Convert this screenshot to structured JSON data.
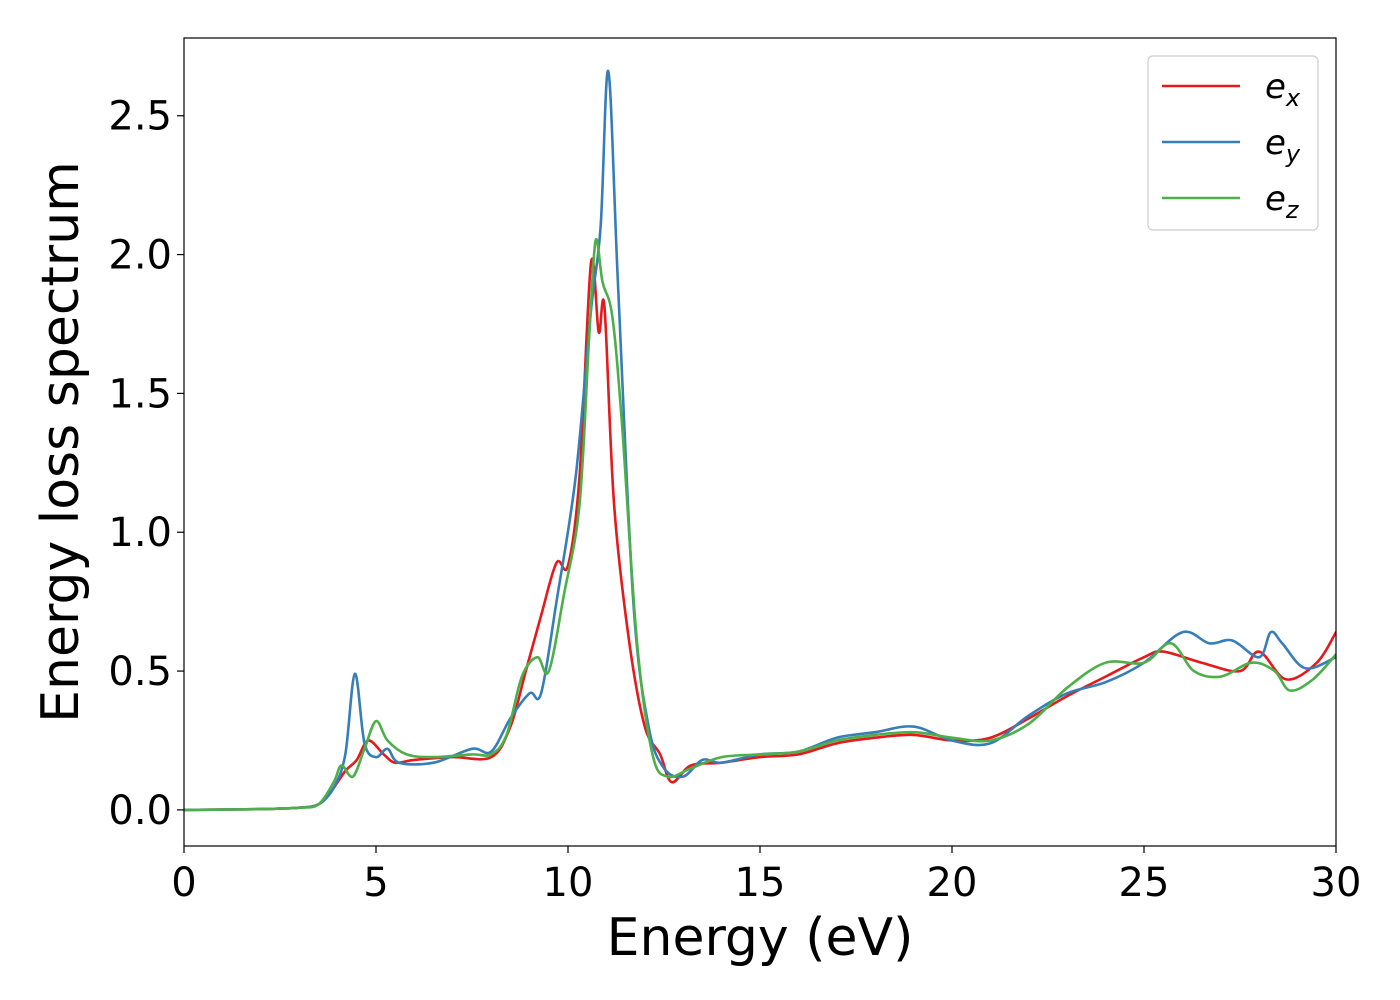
{
  "chart_data": {
    "type": "line",
    "title": "",
    "xlabel": "Energy (eV)",
    "ylabel": "Energy loss spectrum",
    "xlim": [
      0,
      30
    ],
    "ylim": [
      -0.13,
      2.78
    ],
    "xticks": [
      0,
      5,
      10,
      15,
      20,
      25,
      30
    ],
    "yticks": [
      0.0,
      0.5,
      1.0,
      1.5,
      2.0,
      2.5
    ],
    "xtick_labels": [
      "0",
      "5",
      "10",
      "15",
      "20",
      "25",
      "30"
    ],
    "ytick_labels": [
      "0.0",
      "0.5",
      "1.0",
      "1.5",
      "2.0",
      "2.5"
    ],
    "grid": false,
    "legend_position": "top-right",
    "series": [
      {
        "name": "e_x",
        "label_base": "e",
        "label_sub": "x",
        "color": "#e41a1c",
        "points": [
          [
            0,
            0
          ],
          [
            2,
            0.003
          ],
          [
            3,
            0.008
          ],
          [
            3.5,
            0.02
          ],
          [
            3.8,
            0.06
          ],
          [
            4.2,
            0.14
          ],
          [
            4.5,
            0.18
          ],
          [
            4.8,
            0.25
          ],
          [
            5.2,
            0.2
          ],
          [
            5.5,
            0.17
          ],
          [
            6,
            0.18
          ],
          [
            7,
            0.19
          ],
          [
            8,
            0.19
          ],
          [
            8.5,
            0.3
          ],
          [
            8.9,
            0.5
          ],
          [
            9.3,
            0.7
          ],
          [
            9.7,
            0.89
          ],
          [
            10.0,
            0.88
          ],
          [
            10.3,
            1.2
          ],
          [
            10.6,
            1.97
          ],
          [
            10.8,
            1.72
          ],
          [
            10.95,
            1.81
          ],
          [
            11.2,
            1.1
          ],
          [
            11.6,
            0.6
          ],
          [
            12,
            0.3
          ],
          [
            12.4,
            0.2
          ],
          [
            12.7,
            0.1
          ],
          [
            13.2,
            0.16
          ],
          [
            14,
            0.17
          ],
          [
            15,
            0.19
          ],
          [
            16,
            0.2
          ],
          [
            17,
            0.24
          ],
          [
            18,
            0.26
          ],
          [
            19,
            0.27
          ],
          [
            20,
            0.25
          ],
          [
            21,
            0.26
          ],
          [
            22,
            0.33
          ],
          [
            23,
            0.41
          ],
          [
            24,
            0.48
          ],
          [
            25,
            0.55
          ],
          [
            25.5,
            0.57
          ],
          [
            26.5,
            0.53
          ],
          [
            27.5,
            0.5
          ],
          [
            28,
            0.57
          ],
          [
            28.7,
            0.47
          ],
          [
            29.5,
            0.53
          ],
          [
            30,
            0.64
          ]
        ]
      },
      {
        "name": "e_y",
        "label_base": "e",
        "label_sub": "y",
        "color": "#377eb8",
        "points": [
          [
            0,
            0
          ],
          [
            2,
            0.003
          ],
          [
            3,
            0.008
          ],
          [
            3.5,
            0.02
          ],
          [
            3.9,
            0.08
          ],
          [
            4.2,
            0.2
          ],
          [
            4.45,
            0.49
          ],
          [
            4.7,
            0.24
          ],
          [
            5.0,
            0.19
          ],
          [
            5.3,
            0.22
          ],
          [
            5.6,
            0.17
          ],
          [
            6.5,
            0.17
          ],
          [
            7.5,
            0.22
          ],
          [
            8.0,
            0.21
          ],
          [
            8.5,
            0.33
          ],
          [
            9.0,
            0.42
          ],
          [
            9.3,
            0.42
          ],
          [
            9.7,
            0.75
          ],
          [
            10.2,
            1.2
          ],
          [
            10.6,
            1.8
          ],
          [
            10.85,
            2.1
          ],
          [
            11.05,
            2.66
          ],
          [
            11.3,
            1.9
          ],
          [
            11.7,
            0.75
          ],
          [
            12.1,
            0.3
          ],
          [
            12.5,
            0.15
          ],
          [
            13,
            0.12
          ],
          [
            13.5,
            0.18
          ],
          [
            14,
            0.17
          ],
          [
            15,
            0.2
          ],
          [
            16,
            0.21
          ],
          [
            17,
            0.26
          ],
          [
            18,
            0.28
          ],
          [
            19,
            0.3
          ],
          [
            20,
            0.25
          ],
          [
            21,
            0.24
          ],
          [
            22,
            0.34
          ],
          [
            23,
            0.42
          ],
          [
            24,
            0.46
          ],
          [
            25,
            0.53
          ],
          [
            26,
            0.64
          ],
          [
            26.7,
            0.6
          ],
          [
            27.3,
            0.61
          ],
          [
            28.0,
            0.55
          ],
          [
            28.3,
            0.64
          ],
          [
            28.6,
            0.6
          ],
          [
            29.2,
            0.51
          ],
          [
            30,
            0.55
          ]
        ]
      },
      {
        "name": "e_z",
        "label_base": "e",
        "label_sub": "z",
        "color": "#4daf4a",
        "points": [
          [
            0,
            0
          ],
          [
            2,
            0.003
          ],
          [
            3,
            0.008
          ],
          [
            3.5,
            0.02
          ],
          [
            3.9,
            0.1
          ],
          [
            4.1,
            0.16
          ],
          [
            4.4,
            0.12
          ],
          [
            4.7,
            0.22
          ],
          [
            5.0,
            0.32
          ],
          [
            5.3,
            0.25
          ],
          [
            5.8,
            0.2
          ],
          [
            6.5,
            0.19
          ],
          [
            7.5,
            0.2
          ],
          [
            8.0,
            0.2
          ],
          [
            8.4,
            0.27
          ],
          [
            8.8,
            0.48
          ],
          [
            9.2,
            0.55
          ],
          [
            9.5,
            0.5
          ],
          [
            9.9,
            0.78
          ],
          [
            10.3,
            1.1
          ],
          [
            10.55,
            1.7
          ],
          [
            10.72,
            2.05
          ],
          [
            10.9,
            1.9
          ],
          [
            11.15,
            1.78
          ],
          [
            11.4,
            1.4
          ],
          [
            11.8,
            0.6
          ],
          [
            12.2,
            0.2
          ],
          [
            12.6,
            0.12
          ],
          [
            13.2,
            0.15
          ],
          [
            14,
            0.19
          ],
          [
            15,
            0.2
          ],
          [
            16,
            0.21
          ],
          [
            17,
            0.25
          ],
          [
            18,
            0.27
          ],
          [
            19,
            0.28
          ],
          [
            20,
            0.26
          ],
          [
            21,
            0.25
          ],
          [
            22,
            0.31
          ],
          [
            23,
            0.44
          ],
          [
            24,
            0.53
          ],
          [
            25,
            0.53
          ],
          [
            25.7,
            0.6
          ],
          [
            26.3,
            0.5
          ],
          [
            27,
            0.48
          ],
          [
            27.8,
            0.53
          ],
          [
            28.4,
            0.5
          ],
          [
            28.8,
            0.43
          ],
          [
            29.4,
            0.47
          ],
          [
            30,
            0.56
          ]
        ]
      }
    ]
  }
}
